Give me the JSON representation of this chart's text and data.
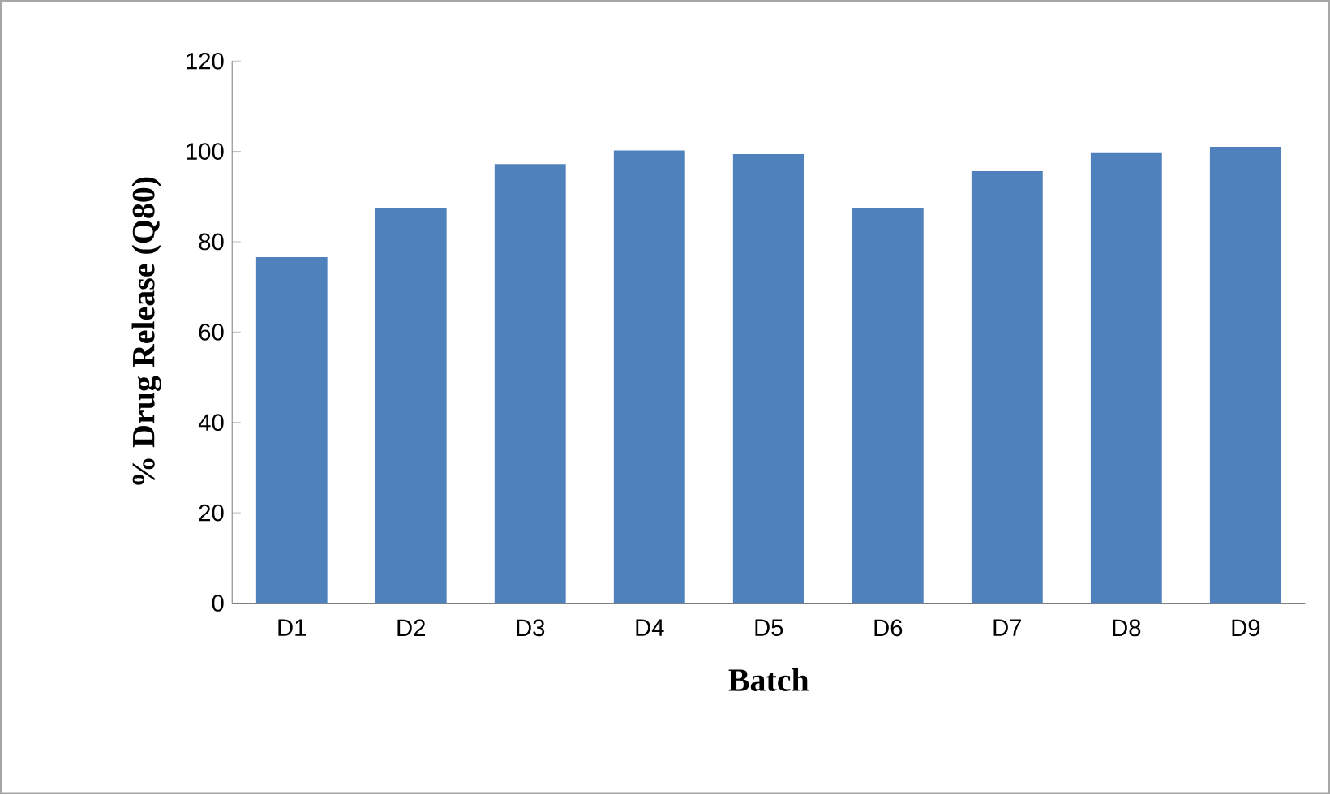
{
  "chart_data": {
    "type": "bar",
    "xlabel": "Batch",
    "ylabel": "% Drug Release (Q80)",
    "categories": [
      "D1",
      "D2",
      "D3",
      "D4",
      "D5",
      "D6",
      "D7",
      "D8",
      "D9"
    ],
    "values": [
      76.6,
      87.5,
      97.2,
      100.2,
      99.4,
      87.5,
      95.6,
      99.8,
      101.0
    ],
    "color": "#4f81bd",
    "ylim": [
      0,
      120
    ],
    "yticks": [
      0,
      20,
      40,
      60,
      80,
      100,
      120
    ],
    "grid": false
  }
}
